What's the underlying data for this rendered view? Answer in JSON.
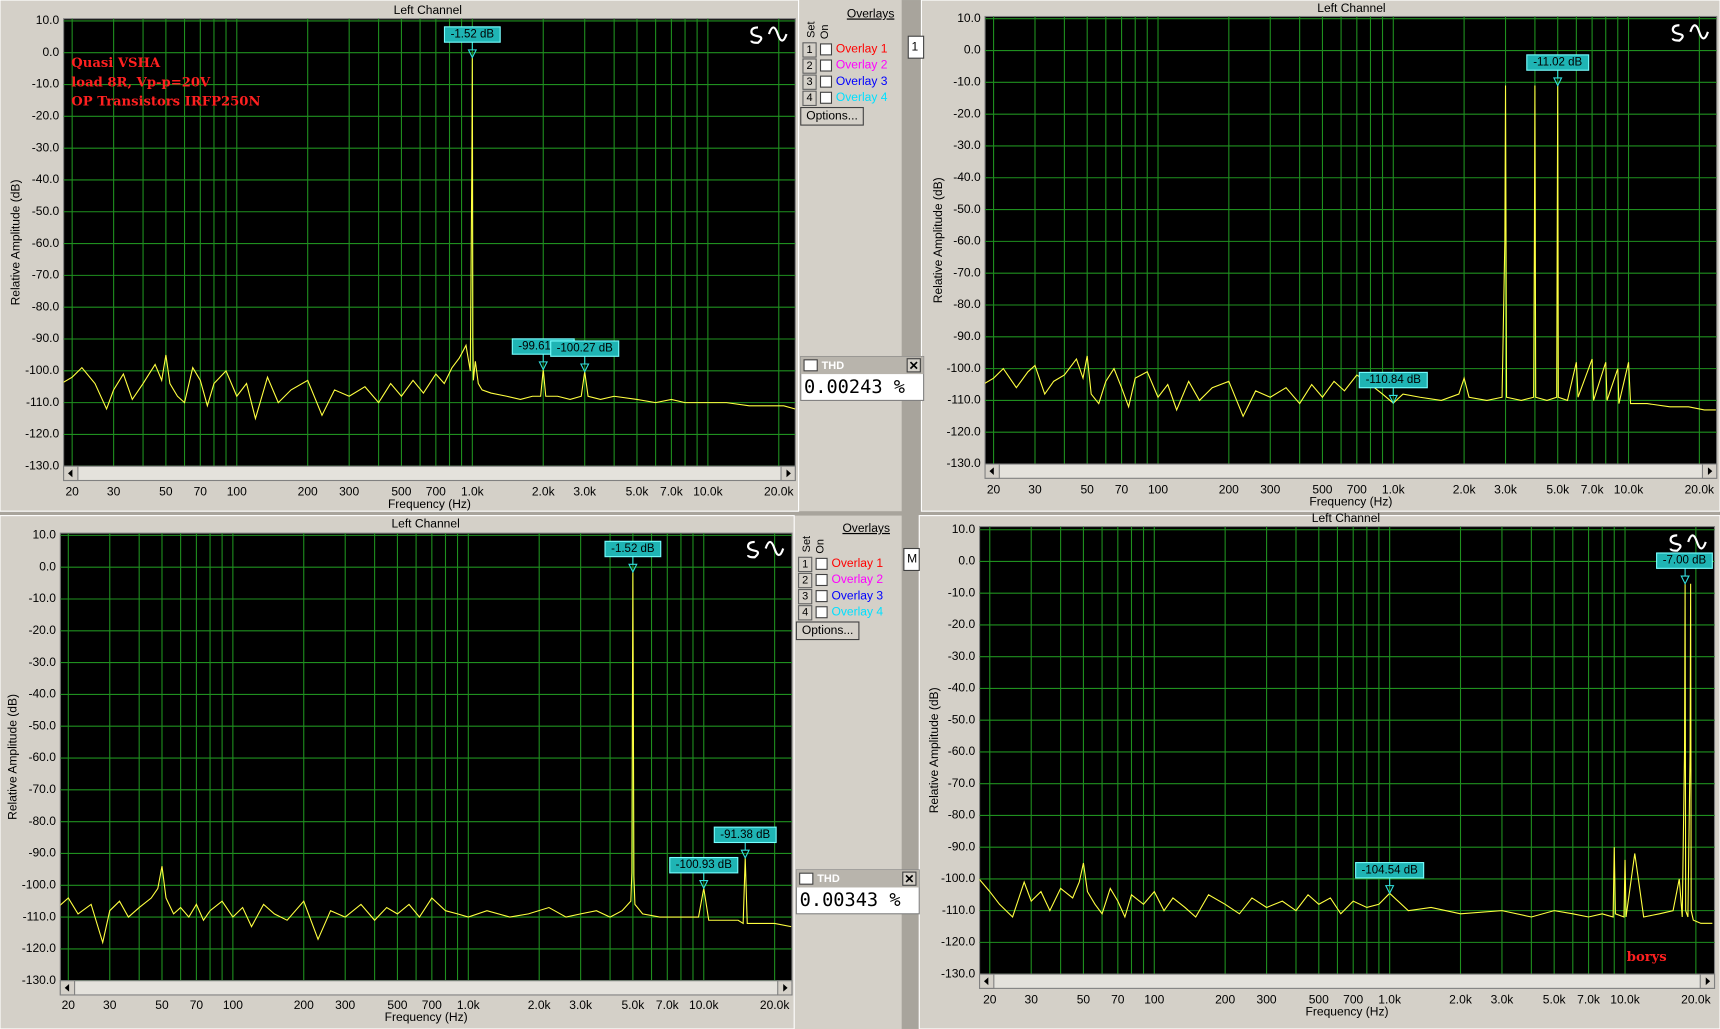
{
  "chart_data": [
    {
      "type": "line",
      "title": "Left Channel",
      "xlabel": "Frequency (Hz)",
      "ylabel": "Relative Amplitude (dB)",
      "xscale": "log",
      "grid": true,
      "color": "#ffff40",
      "grid_color": "#1f8f1f",
      "marker_color": "#33dddd",
      "xlim": [
        18.4,
        23500
      ],
      "ylim": [
        -130,
        10.7
      ],
      "xticks": [
        20,
        30,
        50,
        70,
        100,
        200,
        300,
        500,
        700,
        {
          "value": 1000,
          "label": "1.0k"
        },
        {
          "value": 2000,
          "label": "2.0k"
        },
        {
          "value": 3000,
          "label": "3.0k"
        },
        {
          "value": 5000,
          "label": "5.0k"
        },
        {
          "value": 7000,
          "label": "7.0k"
        },
        {
          "value": 10000,
          "label": "10.0k"
        },
        {
          "value": 20000,
          "label": "20.0k"
        }
      ],
      "xminor": [
        40,
        60,
        80,
        90,
        400,
        600,
        800,
        900,
        4000,
        6000,
        8000,
        9000
      ],
      "yticks": [
        {
          "value": 10,
          "label": "10.0"
        },
        {
          "value": 0,
          "label": "0.0"
        },
        {
          "value": -10,
          "label": "-10.0"
        },
        {
          "value": -20,
          "label": "-20.0"
        },
        {
          "value": -30,
          "label": "-30.0"
        },
        {
          "value": -40,
          "label": "-40.0"
        },
        {
          "value": -50,
          "label": "-50.0"
        },
        {
          "value": -60,
          "label": "-60.0"
        },
        {
          "value": -70,
          "label": "-70.0"
        },
        {
          "value": -80,
          "label": "-80.0"
        },
        {
          "value": -90,
          "label": "-90.0"
        },
        {
          "value": -100,
          "label": "-100.0"
        },
        {
          "value": -110,
          "label": "-110.0"
        },
        {
          "value": -120,
          "label": "-120.0"
        },
        {
          "value": -130,
          "label": "-130.0"
        }
      ],
      "x": [
        18,
        20,
        22,
        25,
        28,
        30,
        33,
        36,
        40,
        45,
        48,
        50,
        52,
        56,
        60,
        65,
        70,
        75,
        80,
        90,
        100,
        110,
        120,
        135,
        150,
        170,
        200,
        230,
        260,
        300,
        350,
        400,
        450,
        500,
        560,
        620,
        700,
        760,
        820,
        880,
        940,
        980,
        995,
        1000,
        1005,
        1010,
        1030,
        1060,
        1100,
        1200,
        1400,
        1600,
        1800,
        1950,
        2000,
        2050,
        2300,
        2600,
        2900,
        3000,
        3100,
        3500,
        4000,
        5000,
        6000,
        7000,
        8000,
        10000,
        12000,
        15000,
        18000,
        21000,
        23500
      ],
      "values": [
        -104,
        -102,
        -99,
        -104,
        -112,
        -106,
        -101,
        -109,
        -104,
        -98,
        -103,
        -95,
        -104,
        -108,
        -110,
        -99,
        -103,
        -111,
        -104,
        -100,
        -108,
        -104,
        -115,
        -102,
        -110,
        -106,
        -103,
        -114,
        -106,
        -108,
        -105,
        -110,
        -104,
        -108,
        -103,
        -107,
        -101,
        -104,
        -99,
        -96,
        -92,
        -100,
        -36,
        -1.52,
        -90,
        -103,
        -97,
        -104,
        -106,
        -107,
        -108,
        -109,
        -108,
        -108,
        -99.61,
        -108,
        -108,
        -109,
        -108,
        -100.27,
        -108,
        -109,
        -108,
        -109,
        -110,
        -109,
        -110,
        -110,
        -110,
        -111,
        -111,
        -111,
        -112
      ],
      "markers": [
        {
          "x": 1000,
          "y": -1.52,
          "label": "-1.52 dB"
        },
        {
          "x": 2000,
          "y": -99.61,
          "label": "-99.61 dB"
        },
        {
          "x": 3000,
          "y": -100.27,
          "label": "-100.27 dB"
        }
      ],
      "annotations": [
        "Quasi VSHA",
        "load 8R, Vp-p=20V",
        "OP Transistors IRFP250N"
      ]
    },
    {
      "type": "line",
      "title": "Left Channel",
      "xlabel": "Frequency (Hz)",
      "ylabel": "Relative Amplitude (dB)",
      "xscale": "log",
      "grid": true,
      "color": "#ffff40",
      "grid_color": "#1f8f1f",
      "marker_color": "#33dddd",
      "xlim": [
        18.4,
        23700
      ],
      "ylim": [
        -130,
        10.7
      ],
      "xticks": [
        20,
        30,
        50,
        70,
        100,
        200,
        300,
        500,
        700,
        {
          "value": 1000,
          "label": "1.0k"
        },
        {
          "value": 2000,
          "label": "2.0k"
        },
        {
          "value": 3000,
          "label": "3.0k"
        },
        {
          "value": 5000,
          "label": "5.0k"
        },
        {
          "value": 7000,
          "label": "7.0k"
        },
        {
          "value": 10000,
          "label": "10.0k"
        },
        {
          "value": 20000,
          "label": "20.0k"
        }
      ],
      "xminor": [
        40,
        60,
        80,
        90,
        400,
        600,
        800,
        900,
        4000,
        6000,
        8000,
        9000
      ],
      "yticks": [
        {
          "value": 10,
          "label": "10.0"
        },
        {
          "value": 0,
          "label": "0.0"
        },
        {
          "value": -10,
          "label": "-10.0"
        },
        {
          "value": -20,
          "label": "-20.0"
        },
        {
          "value": -30,
          "label": "-30.0"
        },
        {
          "value": -40,
          "label": "-40.0"
        },
        {
          "value": -50,
          "label": "-50.0"
        },
        {
          "value": -60,
          "label": "-60.0"
        },
        {
          "value": -70,
          "label": "-70.0"
        },
        {
          "value": -80,
          "label": "-80.0"
        },
        {
          "value": -90,
          "label": "-90.0"
        },
        {
          "value": -100,
          "label": "-100.0"
        },
        {
          "value": -110,
          "label": "-110.0"
        },
        {
          "value": -120,
          "label": "-120.0"
        },
        {
          "value": -130,
          "label": "-130.0"
        }
      ],
      "x": [
        18,
        20,
        22,
        25,
        28,
        30,
        33,
        36,
        40,
        45,
        48,
        50,
        52,
        56,
        60,
        65,
        70,
        75,
        80,
        90,
        100,
        110,
        120,
        135,
        150,
        170,
        200,
        230,
        260,
        300,
        350,
        400,
        450,
        500,
        560,
        620,
        700,
        800,
        900,
        1000,
        1100,
        1300,
        1600,
        1900,
        2000,
        2100,
        2500,
        2900,
        2980,
        3000,
        3030,
        3500,
        3950,
        3980,
        4000,
        4030,
        4500,
        4950,
        4980,
        5000,
        5030,
        5500,
        6000,
        6100,
        7000,
        7100,
        8000,
        8100,
        9000,
        9100,
        10000,
        10200,
        12000,
        15000,
        18000,
        21000,
        23500
      ],
      "values": [
        -105,
        -103,
        -100,
        -106,
        -101,
        -99,
        -108,
        -104,
        -102,
        -97,
        -103,
        -96,
        -108,
        -111,
        -104,
        -100,
        -106,
        -112,
        -103,
        -101,
        -109,
        -105,
        -113,
        -104,
        -110,
        -106,
        -104,
        -115,
        -107,
        -109,
        -106,
        -111,
        -105,
        -109,
        -104,
        -107,
        -102,
        -105,
        -108,
        -110.84,
        -108,
        -109,
        -110,
        -108,
        -103,
        -109,
        -110,
        -109,
        -60,
        -11,
        -109,
        -110,
        -109,
        -60,
        -11,
        -109,
        -110,
        -109,
        -50,
        -11.02,
        -109,
        -110,
        -98,
        -109,
        -97,
        -110,
        -98,
        -110,
        -100,
        -111,
        -98,
        -111,
        -111,
        -112,
        -112,
        -113,
        -113
      ],
      "markers": [
        {
          "x": 5000,
          "y": -11.02,
          "label": "-11.02 dB"
        },
        {
          "x": 1000,
          "y": -110.84,
          "label": "-110.84 dB"
        }
      ]
    },
    {
      "type": "line",
      "title": "Left Channel",
      "xlabel": "Frequency (Hz)",
      "ylabel": "Relative Amplitude (dB)",
      "xscale": "log",
      "grid": true,
      "color": "#ffff40",
      "grid_color": "#1f8f1f",
      "marker_color": "#33dddd",
      "xlim": [
        18.5,
        23700
      ],
      "ylim": [
        -130,
        10.7
      ],
      "xticks": [
        20,
        30,
        50,
        70,
        100,
        200,
        300,
        500,
        700,
        {
          "value": 1000,
          "label": "1.0k"
        },
        {
          "value": 2000,
          "label": "2.0k"
        },
        {
          "value": 3000,
          "label": "3.0k"
        },
        {
          "value": 5000,
          "label": "5.0k"
        },
        {
          "value": 7000,
          "label": "7.0k"
        },
        {
          "value": 10000,
          "label": "10.0k"
        },
        {
          "value": 20000,
          "label": "20.0k"
        }
      ],
      "xminor": [
        40,
        60,
        80,
        90,
        400,
        600,
        800,
        900,
        4000,
        6000,
        8000,
        9000
      ],
      "yticks": [
        {
          "value": 10,
          "label": "10.0"
        },
        {
          "value": 0,
          "label": "0.0"
        },
        {
          "value": -10,
          "label": "-10.0"
        },
        {
          "value": -20,
          "label": "-20.0"
        },
        {
          "value": -30,
          "label": "-30.0"
        },
        {
          "value": -40,
          "label": "-40.0"
        },
        {
          "value": -50,
          "label": "-50.0"
        },
        {
          "value": -60,
          "label": "-60.0"
        },
        {
          "value": -70,
          "label": "-70.0"
        },
        {
          "value": -80,
          "label": "-80.0"
        },
        {
          "value": -90,
          "label": "-90.0"
        },
        {
          "value": -100,
          "label": "-100.0"
        },
        {
          "value": -110,
          "label": "-110.0"
        },
        {
          "value": -120,
          "label": "-120.0"
        },
        {
          "value": -130,
          "label": "-130.0"
        }
      ],
      "x": [
        18,
        20,
        22,
        25,
        28,
        30,
        33,
        36,
        40,
        45,
        48,
        50,
        52,
        56,
        60,
        65,
        70,
        75,
        80,
        90,
        100,
        110,
        120,
        135,
        150,
        170,
        200,
        230,
        260,
        300,
        350,
        400,
        450,
        500,
        560,
        620,
        700,
        800,
        900,
        1000,
        1200,
        1500,
        1800,
        2200,
        2600,
        3000,
        3500,
        4000,
        4500,
        4900,
        4950,
        5000,
        5050,
        5100,
        5500,
        6500,
        8000,
        9500,
        10000,
        10500,
        12000,
        14000,
        14700,
        15000,
        15300,
        17000,
        20000,
        23500
      ],
      "values": [
        -107,
        -104,
        -109,
        -106,
        -118,
        -108,
        -105,
        -110,
        -107,
        -104,
        -101,
        -94,
        -104,
        -109,
        -107,
        -110,
        -106,
        -111,
        -108,
        -105,
        -110,
        -107,
        -113,
        -106,
        -109,
        -111,
        -105,
        -117,
        -108,
        -110,
        -106,
        -111,
        -107,
        -109,
        -106,
        -110,
        -104,
        -108,
        -109,
        -110,
        -108,
        -110,
        -109,
        -107,
        -110,
        -109,
        -108,
        -110,
        -108,
        -105,
        -96,
        -1.52,
        -97,
        -106,
        -109,
        -110,
        -110,
        -110,
        -100.93,
        -111,
        -111,
        -111,
        -112,
        -91.38,
        -112,
        -112,
        -112,
        -113
      ],
      "markers": [
        {
          "x": 5000,
          "y": -1.52,
          "label": "-1.52 dB"
        },
        {
          "x": 10000,
          "y": -100.93,
          "label": "-100.93 dB"
        },
        {
          "x": 15000,
          "y": -91.38,
          "label": "-91.38 dB"
        }
      ]
    },
    {
      "type": "line",
      "title": "Left Channel",
      "xlabel": "Frequency (Hz)",
      "ylabel": "Relative Amplitude (dB)",
      "xscale": "log",
      "grid": true,
      "color": "#ffff40",
      "grid_color": "#1f8f1f",
      "marker_color": "#33dddd",
      "xlim": [
        18.1,
        24000
      ],
      "ylim": [
        -130,
        11
      ],
      "xticks": [
        20,
        30,
        50,
        70,
        100,
        200,
        300,
        500,
        700,
        {
          "value": 1000,
          "label": "1.0k"
        },
        {
          "value": 2000,
          "label": "2.0k"
        },
        {
          "value": 3000,
          "label": "3.0k"
        },
        {
          "value": 5000,
          "label": "5.0k"
        },
        {
          "value": 7000,
          "label": "7.0k"
        },
        {
          "value": 10000,
          "label": "10.0k"
        },
        {
          "value": 20000,
          "label": "20.0k"
        }
      ],
      "xminor": [
        40,
        60,
        80,
        90,
        400,
        600,
        800,
        900,
        4000,
        6000,
        8000,
        9000
      ],
      "yticks": [
        {
          "value": 10,
          "label": "10.0"
        },
        {
          "value": 0,
          "label": "0.0"
        },
        {
          "value": -10,
          "label": "-10.0"
        },
        {
          "value": -20,
          "label": "-20.0"
        },
        {
          "value": -30,
          "label": "-30.0"
        },
        {
          "value": -40,
          "label": "-40.0"
        },
        {
          "value": -50,
          "label": "-50.0"
        },
        {
          "value": -60,
          "label": "-60.0"
        },
        {
          "value": -70,
          "label": "-70.0"
        },
        {
          "value": -80,
          "label": "-80.0"
        },
        {
          "value": -90,
          "label": "-90.0"
        },
        {
          "value": -100,
          "label": "-100.0"
        },
        {
          "value": -110,
          "label": "-110.0"
        },
        {
          "value": -120,
          "label": "-120.0"
        },
        {
          "value": -130,
          "label": "-130.0"
        }
      ],
      "x": [
        18,
        20,
        22,
        25,
        28,
        30,
        33,
        36,
        40,
        45,
        48,
        50,
        52,
        56,
        60,
        65,
        70,
        75,
        80,
        90,
        100,
        110,
        120,
        135,
        150,
        170,
        200,
        230,
        260,
        300,
        350,
        400,
        450,
        500,
        560,
        620,
        700,
        800,
        900,
        1000,
        1200,
        1500,
        2000,
        3000,
        4000,
        5000,
        6000,
        7000,
        8000,
        8900,
        9000,
        9100,
        9900,
        10000,
        10100,
        11000,
        12000,
        14000,
        16000,
        17000,
        17500,
        17900,
        18000,
        18100,
        18500,
        18900,
        19000,
        19100,
        19500,
        21000,
        23500
      ],
      "values": [
        -100,
        -104,
        -108,
        -112,
        -101,
        -107,
        -104,
        -110,
        -103,
        -106,
        -101,
        -95,
        -104,
        -108,
        -111,
        -103,
        -107,
        -112,
        -105,
        -108,
        -104,
        -110,
        -106,
        -109,
        -112,
        -105,
        -108,
        -111,
        -106,
        -109,
        -107,
        -110,
        -105,
        -108,
        -106,
        -111,
        -107,
        -109,
        -108,
        -104.54,
        -110,
        -109,
        -111,
        -110,
        -112,
        -110,
        -111,
        -112,
        -111,
        -112,
        -90,
        -111,
        -112,
        -94,
        -112,
        -92,
        -112,
        -111,
        -110,
        -100,
        -112,
        -60,
        -7,
        -110,
        -112,
        -60,
        -7,
        -110,
        -113,
        -114,
        -114
      ],
      "markers": [
        {
          "x": 18000,
          "y": -7,
          "label": "-7.00 dB"
        },
        {
          "x": 1000,
          "y": -104.54,
          "label": "-104.54 dB"
        }
      ],
      "annotations": [
        "borys"
      ]
    }
  ],
  "overlay_panels": [
    {
      "header": "Overlays",
      "set": "Set",
      "on": "On",
      "button": "Options...",
      "rows": [
        {
          "number": "1",
          "label": "Overlay 1",
          "color": "#ff0000"
        },
        {
          "number": "2",
          "label": "Overlay 2",
          "color": "#ff00ff"
        },
        {
          "number": "3",
          "label": "Overlay 3",
          "color": "#0000ff"
        },
        {
          "number": "4",
          "label": "Overlay 4",
          "color": "#00e0ff"
        }
      ]
    },
    {
      "header": "Overlays",
      "set": "Set",
      "on": "On",
      "button": "Options...",
      "rows": [
        {
          "number": "1",
          "label": "Overlay 1",
          "color": "#ff0000"
        },
        {
          "number": "2",
          "label": "Overlay 2",
          "color": "#ff00ff"
        },
        {
          "number": "3",
          "label": "Overlay 3",
          "color": "#0000ff"
        },
        {
          "number": "4",
          "label": "Overlay 4",
          "color": "#00e0ff"
        }
      ]
    }
  ],
  "thd": [
    {
      "title": "THD",
      "value": "0.00243 %"
    },
    {
      "title": "THD",
      "value": "0.00343 %"
    }
  ],
  "fragments": [
    "1",
    "M"
  ]
}
